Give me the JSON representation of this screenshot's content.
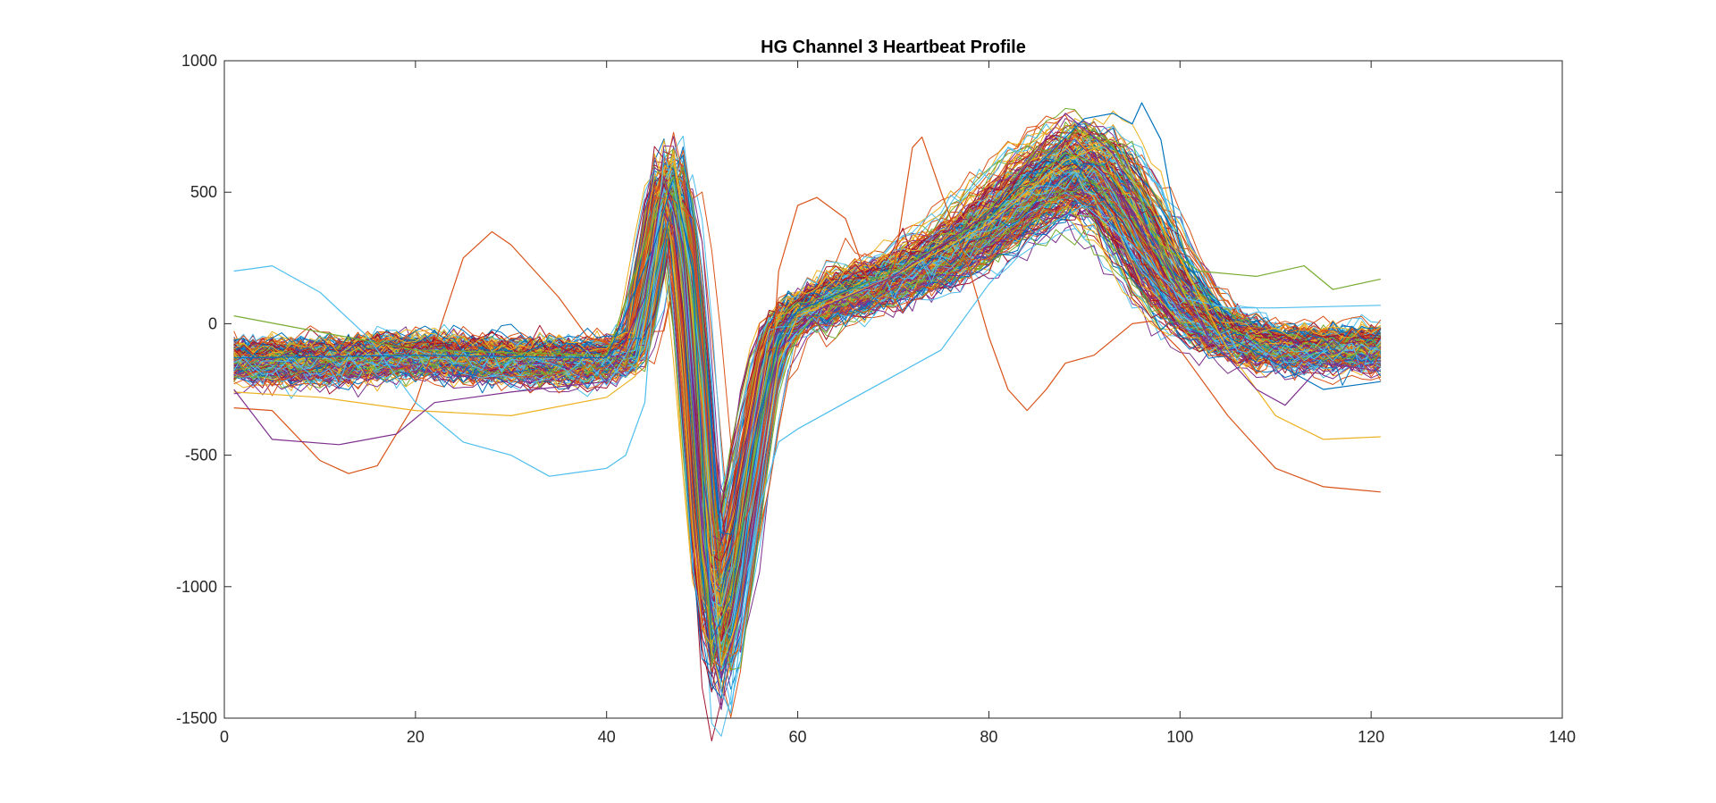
{
  "chart_data": {
    "type": "line",
    "title": "HG Channel 3 Heartbeat Profile",
    "xlabel": "",
    "ylabel": "",
    "xlim": [
      0,
      140
    ],
    "ylim": [
      -1500,
      1000
    ],
    "xticks": [
      0,
      20,
      40,
      60,
      80,
      100,
      120,
      140
    ],
    "yticks": [
      -1500,
      -1000,
      -500,
      0,
      500,
      1000
    ],
    "x_range_of_samples": [
      1,
      121
    ],
    "grid": false,
    "legend": "none",
    "series_count_estimate": 300,
    "colors": [
      "#0072BD",
      "#D95319",
      "#EDB120",
      "#7E2F8E",
      "#77AC30",
      "#4DBEEE",
      "#A2142F"
    ],
    "template_profile": {
      "x": [
        1,
        10,
        20,
        30,
        40,
        43,
        44,
        45,
        46,
        47,
        48,
        49,
        50,
        51,
        52,
        53,
        54,
        55,
        56,
        57,
        58,
        60,
        65,
        70,
        75,
        80,
        85,
        88,
        90,
        92,
        95,
        98,
        100,
        103,
        106,
        110,
        115,
        121
      ],
      "y": [
        -140,
        -145,
        -120,
        -145,
        -140,
        -90,
        90,
        300,
        520,
        530,
        300,
        -100,
        -650,
        -1050,
        -1150,
        -1000,
        -780,
        -550,
        -320,
        -130,
        -30,
        40,
        120,
        170,
        250,
        380,
        520,
        580,
        600,
        560,
        400,
        200,
        90,
        -10,
        -60,
        -90,
        -95,
        -95
      ]
    },
    "typical_band": {
      "baseline_range": [
        -250,
        -40
      ],
      "r_peak_range": [
        450,
        600
      ],
      "s_trough_range": [
        -1450,
        -650
      ],
      "t_peak_range": [
        400,
        800
      ]
    },
    "outlier_series": [
      {
        "color": "#D95319",
        "x": [
          1,
          5,
          10,
          13,
          16,
          20,
          25,
          28,
          30,
          35,
          38,
          42,
          45,
          47,
          49,
          52,
          55,
          57,
          58,
          60,
          62,
          65,
          68,
          70,
          72,
          73,
          75,
          78,
          80,
          82,
          84,
          86,
          88,
          91,
          95,
          97,
          100,
          105,
          110,
          115,
          121
        ],
        "y": [
          -320,
          -330,
          -520,
          -570,
          -540,
          -300,
          250,
          350,
          300,
          100,
          -50,
          -100,
          480,
          470,
          400,
          -950,
          -700,
          -300,
          200,
          450,
          480,
          400,
          100,
          200,
          670,
          710,
          500,
          200,
          -50,
          -250,
          -330,
          -250,
          -150,
          -120,
          0,
          10,
          -100,
          -350,
          -550,
          -620,
          -640
        ]
      },
      {
        "color": "#4DBEEE",
        "x": [
          1,
          3,
          5,
          10,
          15,
          20,
          25,
          30,
          34,
          40,
          42,
          44,
          46,
          48,
          50,
          52,
          53,
          54,
          56,
          58,
          60,
          65,
          70,
          75,
          80,
          85,
          90,
          95,
          100,
          105,
          110,
          121
        ],
        "y": [
          200,
          210,
          220,
          120,
          -50,
          -300,
          -450,
          -500,
          -580,
          -550,
          -500,
          -300,
          650,
          400,
          -200,
          -1400,
          -1480,
          -1200,
          -700,
          -450,
          -400,
          -300,
          -200,
          -100,
          150,
          350,
          450,
          300,
          100,
          60,
          60,
          70
        ]
      },
      {
        "color": "#EDB120",
        "x": [
          1,
          10,
          20,
          30,
          40,
          43,
          45,
          47,
          48,
          50,
          52,
          54,
          56,
          58,
          60,
          70,
          80,
          88,
          92,
          96,
          100,
          105,
          110,
          115,
          121
        ],
        "y": [
          -260,
          -280,
          -330,
          -350,
          -280,
          -200,
          200,
          660,
          380,
          -300,
          -1300,
          -1100,
          -600,
          -150,
          30,
          180,
          380,
          620,
          680,
          500,
          250,
          -100,
          -350,
          -440,
          -430
        ]
      },
      {
        "color": "#0072BD",
        "x": [
          1,
          20,
          40,
          45,
          47,
          49,
          51,
          53,
          55,
          58,
          60,
          70,
          80,
          85,
          90,
          93,
          95,
          96,
          98,
          100,
          105,
          110,
          115,
          121
        ],
        "y": [
          -130,
          -120,
          -130,
          300,
          560,
          200,
          -1200,
          -1050,
          -600,
          -50,
          50,
          200,
          400,
          600,
          780,
          800,
          760,
          840,
          700,
          300,
          -50,
          -150,
          -250,
          -220
        ]
      },
      {
        "color": "#77AC30",
        "x": [
          1,
          20,
          40,
          45,
          47,
          49,
          51,
          53,
          56,
          58,
          60,
          70,
          80,
          88,
          92,
          98,
          102,
          108,
          113,
          116,
          121
        ],
        "y": [
          30,
          -100,
          -120,
          400,
          560,
          100,
          -1300,
          -1000,
          -400,
          -80,
          40,
          200,
          400,
          650,
          600,
          300,
          200,
          180,
          220,
          130,
          170
        ]
      },
      {
        "color": "#7E2F8E",
        "x": [
          1,
          5,
          12,
          18,
          22,
          30,
          40,
          44,
          46,
          48,
          50,
          52,
          54,
          56,
          58,
          62,
          70,
          80,
          88,
          93,
          98,
          103,
          108,
          111,
          115,
          121
        ],
        "y": [
          -250,
          -440,
          -460,
          -420,
          -300,
          -260,
          -220,
          100,
          560,
          300,
          -800,
          -1350,
          -1100,
          -600,
          -100,
          50,
          180,
          420,
          800,
          650,
          250,
          -50,
          -250,
          -310,
          -150,
          -180
        ]
      }
    ]
  }
}
